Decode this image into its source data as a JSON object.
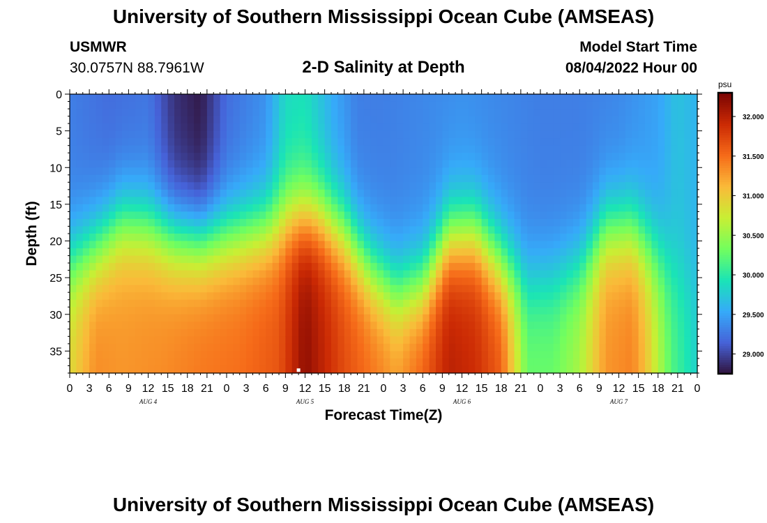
{
  "header": {
    "title": "University of Southern Mississippi Ocean Cube (AMSEAS)",
    "station": "USMWR",
    "coordinates": "30.0757N  88.7961W",
    "subtitle": "2-D Salinity at Depth",
    "model_start_label": "Model Start Time",
    "model_start_value": "08/04/2022 Hour 00"
  },
  "footer": {
    "title": "University of Southern Mississippi Ocean Cube (AMSEAS)"
  },
  "chart_data": {
    "type": "heatmap",
    "title": "2-D Salinity at Depth",
    "xlabel": "Forecast Time(Z)",
    "ylabel": "Depth (ft)",
    "x_range_hours": [
      0,
      96
    ],
    "x_tick_labels": [
      "0",
      "3",
      "6",
      "9",
      "12",
      "15",
      "18",
      "21",
      "0",
      "3",
      "6",
      "9",
      "12",
      "15",
      "18",
      "21",
      "0",
      "3",
      "6",
      "9",
      "12",
      "15",
      "18",
      "21",
      "0",
      "3",
      "6",
      "9",
      "12",
      "15",
      "18",
      "21",
      "0"
    ],
    "day_labels": [
      {
        "label": "AUG 4",
        "hour": 12
      },
      {
        "label": "AUG 5",
        "hour": 36
      },
      {
        "label": "AUG 6",
        "hour": 60
      },
      {
        "label": "AUG 7",
        "hour": 84
      }
    ],
    "y_range_ft": [
      0,
      38
    ],
    "y_ticks": [
      0,
      5,
      10,
      15,
      20,
      25,
      30,
      35
    ],
    "colorbar": {
      "unit": "psu",
      "range": [
        28.75,
        32.3
      ],
      "ticks": [
        "29.000",
        "29.500",
        "30.000",
        "30.500",
        "31.000",
        "31.500",
        "32.000"
      ],
      "tick_values": [
        29.0,
        29.5,
        30.0,
        30.5,
        31.0,
        31.5,
        32.0
      ],
      "colors": [
        "#30123b",
        "#4662d8",
        "#36aaf9",
        "#1ae4b6",
        "#72fe5e",
        "#c8ef34",
        "#faba39",
        "#f66b19",
        "#cb2a04",
        "#7a0403"
      ]
    },
    "surface_salinity_by_hour": {
      "hours": [
        0,
        6,
        12,
        16,
        20,
        24,
        30,
        33,
        36,
        40,
        44,
        48,
        54,
        60,
        66,
        72,
        78,
        84,
        90,
        93,
        96
      ],
      "values": [
        29.3,
        29.2,
        29.25,
        28.9,
        28.78,
        29.2,
        29.4,
        29.85,
        29.9,
        29.55,
        29.3,
        29.3,
        29.35,
        29.4,
        29.35,
        29.3,
        29.3,
        29.35,
        29.5,
        29.7,
        29.6
      ]
    },
    "bottom_salinity_by_hour": {
      "hours": [
        0,
        4,
        8,
        14,
        20,
        26,
        32,
        36,
        42,
        46,
        50,
        54,
        58,
        62,
        66,
        70,
        74,
        78,
        82,
        86,
        88,
        92,
        96
      ],
      "values": [
        30.9,
        31.35,
        31.3,
        31.35,
        31.45,
        31.5,
        31.65,
        32.2,
        31.7,
        31.5,
        31.3,
        31.6,
        32.0,
        31.9,
        31.6,
        30.3,
        30.3,
        30.6,
        31.3,
        31.4,
        31.1,
        30.2,
        29.8
      ]
    },
    "halocline_depth_ft_by_hour": {
      "hours": [
        0,
        4,
        8,
        12,
        16,
        20,
        24,
        30,
        34,
        38,
        42,
        46,
        50,
        54,
        58,
        62,
        66,
        70,
        74,
        78,
        82,
        86,
        90,
        94,
        96
      ],
      "values": [
        23,
        21,
        17.5,
        18,
        19.5,
        20,
        19.5,
        18.5,
        16.5,
        16.5,
        19,
        24,
        27,
        26,
        19.5,
        19,
        23,
        25.5,
        25,
        23.5,
        18.5,
        18.5,
        22,
        25,
        26
      ]
    },
    "marker": {
      "hour": 35,
      "depth_ft": 37.6
    }
  }
}
